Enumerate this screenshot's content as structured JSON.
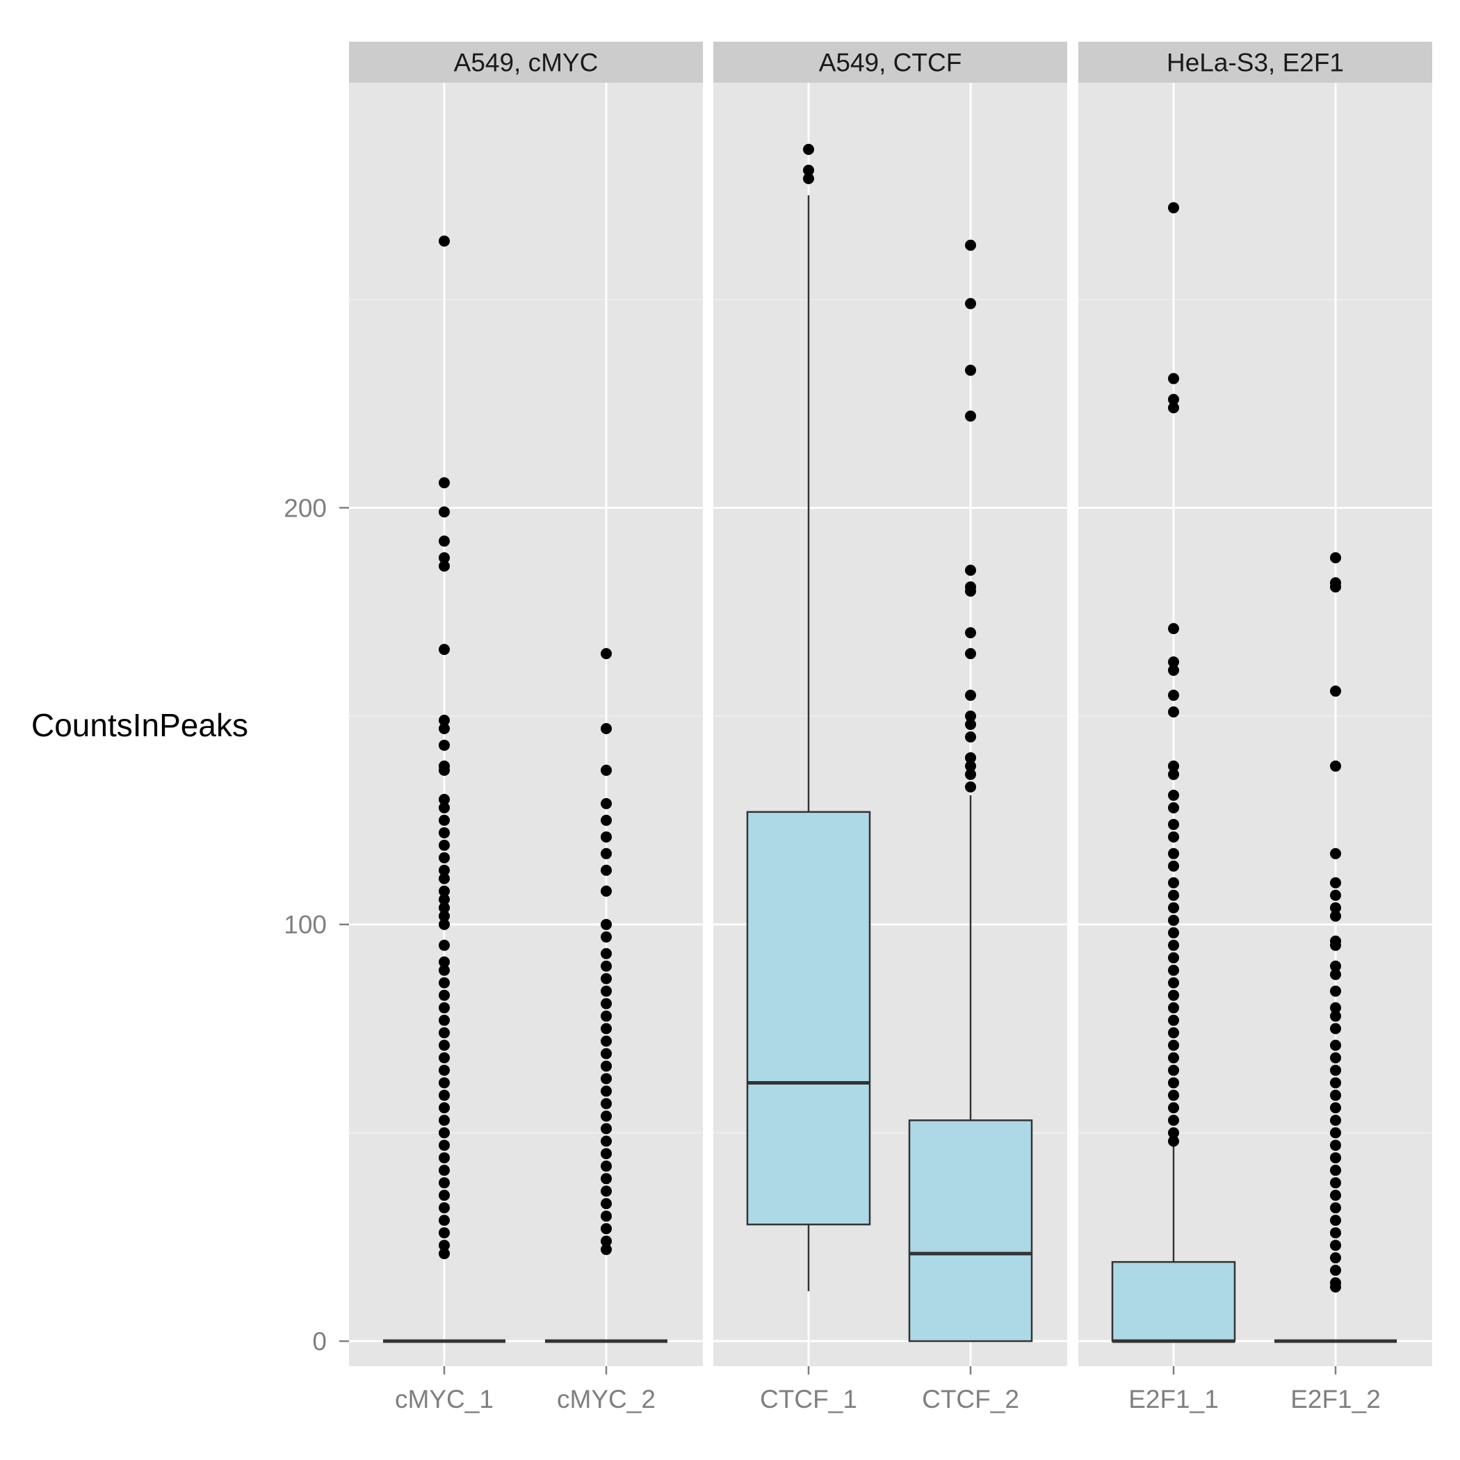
{
  "chart_data": {
    "type": "box",
    "ylabel": "CountsInPeaks",
    "xlabel": "",
    "title": "",
    "ylim": [
      -6,
      302
    ],
    "y_ticks": [
      0,
      100,
      200
    ],
    "y_minor": [
      50,
      150,
      250
    ],
    "grid": true,
    "colors": {
      "panel_bg": "#e5e5e5",
      "strip_bg": "#cccccc",
      "grid_major": "#ffffff",
      "grid_minor": "#f2f2f2",
      "box_fill": "#add8e6",
      "box_line": "#333333",
      "point": "#000000",
      "tick_label": "#7f7f7f"
    },
    "facets": [
      {
        "label": "A549, cMYC",
        "groups": [
          {
            "name": "cMYC_1",
            "stats": {
              "lower": 0,
              "q1": 0,
              "median": 0,
              "q3": 0,
              "upper": 0
            },
            "outliers": [
              264,
              206,
              199,
              192,
              188,
              186,
              166,
              149,
              147,
              143,
              138,
              137,
              130,
              128,
              125,
              122,
              119,
              116,
              113,
              111,
              108,
              106,
              104,
              102,
              100,
              95,
              91,
              89,
              86,
              83,
              80,
              77,
              74,
              71,
              68,
              65,
              62,
              59,
              56,
              53,
              50,
              47,
              44,
              41,
              38,
              35,
              32,
              29,
              26,
              23,
              21
            ]
          },
          {
            "name": "cMYC_2",
            "stats": {
              "lower": 0,
              "q1": 0,
              "median": 0,
              "q3": 0,
              "upper": 0
            },
            "outliers": [
              165,
              147,
              137,
              129,
              125,
              121,
              117,
              113,
              108,
              100,
              97,
              93,
              90,
              87,
              84,
              81,
              78,
              75,
              72,
              69,
              66,
              63,
              60,
              57,
              54,
              51,
              48,
              45,
              42,
              39,
              36,
              33,
              30,
              27,
              24,
              22
            ]
          }
        ]
      },
      {
        "label": "A549, CTCF",
        "groups": [
          {
            "name": "CTCF_1",
            "stats": {
              "lower": 12,
              "q1": 28,
              "median": 62,
              "q3": 127,
              "upper": 275
            },
            "outliers": [
              286,
              281,
              279
            ]
          },
          {
            "name": "CTCF_2",
            "stats": {
              "lower": 0,
              "q1": 0,
              "median": 21,
              "q3": 53,
              "upper": 131
            },
            "outliers": [
              263,
              249,
              233,
              222,
              185,
              181,
              180,
              170,
              165,
              155,
              150,
              148,
              145,
              140,
              138,
              136,
              133
            ]
          }
        ]
      },
      {
        "label": "HeLa-S3, E2F1",
        "groups": [
          {
            "name": "E2F1_1",
            "stats": {
              "lower": 0,
              "q1": 0,
              "median": 0,
              "q3": 19,
              "upper": 47
            },
            "outliers": [
              272,
              231,
              226,
              224,
              171,
              163,
              161,
              155,
              151,
              138,
              136,
              131,
              128,
              124,
              121,
              117,
              114,
              110,
              107,
              104,
              101,
              98,
              95,
              92,
              89,
              86,
              83,
              80,
              77,
              74,
              71,
              68,
              65,
              62,
              59,
              56,
              53,
              50,
              48
            ]
          },
          {
            "name": "E2F1_2",
            "stats": {
              "lower": 0,
              "q1": 0,
              "median": 0,
              "q3": 0,
              "upper": 0
            },
            "outliers": [
              188,
              182,
              181,
              156,
              138,
              117,
              110,
              107,
              104,
              102,
              96,
              95,
              90,
              88,
              84,
              80,
              78,
              75,
              71,
              68,
              65,
              62,
              59,
              56,
              53,
              50,
              47,
              44,
              41,
              38,
              35,
              32,
              29,
              26,
              23,
              20,
              17,
              14,
              13
            ]
          }
        ]
      }
    ]
  }
}
